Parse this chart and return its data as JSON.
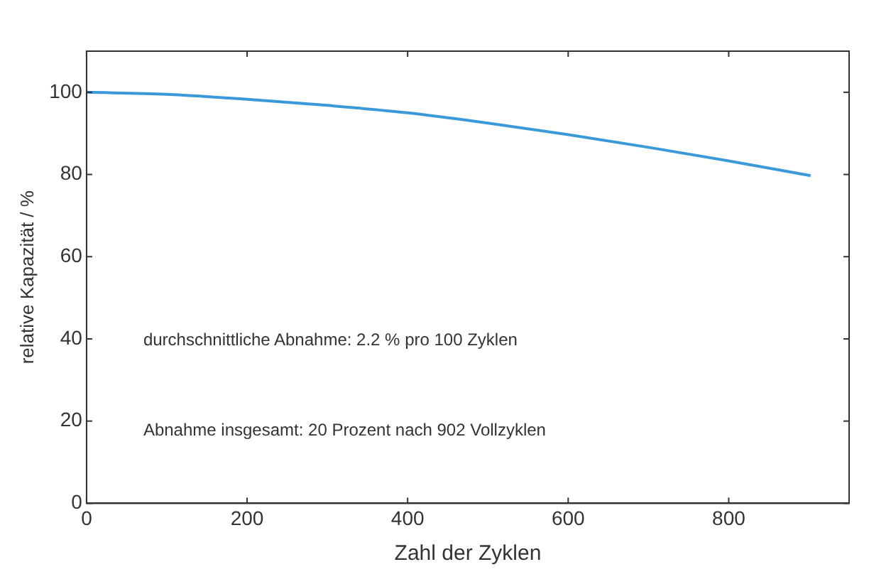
{
  "chart_data": {
    "type": "line",
    "xlabel": "Zahl der Zyklen",
    "ylabel": "relative Kapazität / %",
    "x": [
      0,
      100,
      200,
      300,
      400,
      500,
      600,
      700,
      800,
      902
    ],
    "series": [
      {
        "color": "#3a9ad9",
        "values": [
          100,
          99.5,
          98.3,
          96.8,
          95,
          92.5,
          89.7,
          86.6,
          83.3,
          79.7
        ]
      }
    ],
    "xlim": [
      0,
      950
    ],
    "xticks": [
      0,
      200,
      400,
      600,
      800
    ],
    "ylim": [
      0,
      110
    ],
    "yticks": [
      0,
      20,
      40,
      60,
      80,
      100
    ],
    "annotations": [
      "durchschnittliche Abnahme: 2.2 % pro 100 Zyklen",
      "Abnahme insgesamt: 20 Prozent nach 902 Vollzyklen"
    ],
    "grid": false,
    "legend": false,
    "marker": "none",
    "line_style": "solid"
  }
}
